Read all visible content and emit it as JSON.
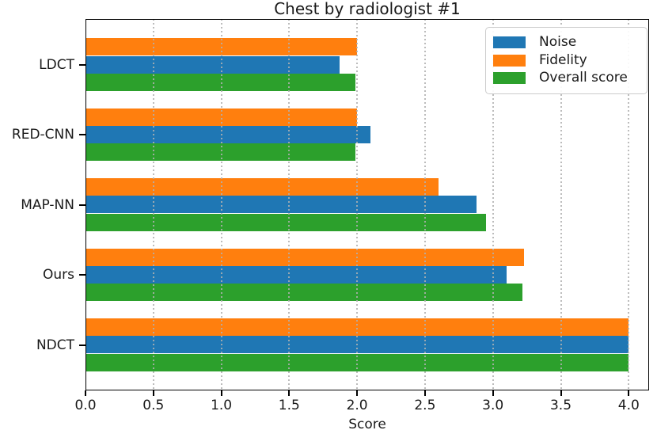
{
  "chart_data": {
    "type": "bar",
    "orientation": "horizontal",
    "title": "Chest by radiologist #1",
    "xlabel": "Score",
    "ylabel": "",
    "categories": [
      "LDCT",
      "RED-CNN",
      "MAP-NN",
      "Ours",
      "NDCT"
    ],
    "series": [
      {
        "name": "Noise",
        "color": "#1f77b4",
        "row_in_group": 1,
        "values": [
          1.87,
          2.1,
          2.88,
          3.1,
          4.0
        ]
      },
      {
        "name": "Fidelity",
        "color": "#ff7f0e",
        "row_in_group": 0,
        "values": [
          2.0,
          2.0,
          2.6,
          3.23,
          4.0
        ]
      },
      {
        "name": "Overall score",
        "color": "#2ca02c",
        "row_in_group": 2,
        "values": [
          1.99,
          1.99,
          2.95,
          3.22,
          4.0
        ]
      }
    ],
    "xlim": [
      0,
      4.15
    ],
    "xticks": [
      0,
      0.5,
      1,
      1.5,
      2,
      2.5,
      3,
      3.5,
      4
    ],
    "xtick_labels": [
      "0.0",
      "0.5",
      "1.0",
      "1.5",
      "2.0",
      "2.5",
      "3.0",
      "3.5",
      "4.0"
    ],
    "grid": {
      "axis": "x",
      "style": "dotted",
      "color": "#b0b0b0",
      "on_top_of_bars": true
    },
    "legend": {
      "position": "upper-right",
      "entries": [
        "Noise",
        "Fidelity",
        "Overall score"
      ]
    }
  },
  "colors": {
    "spine": "#000000",
    "text": "#1a1a1a",
    "background": "#ffffff"
  }
}
